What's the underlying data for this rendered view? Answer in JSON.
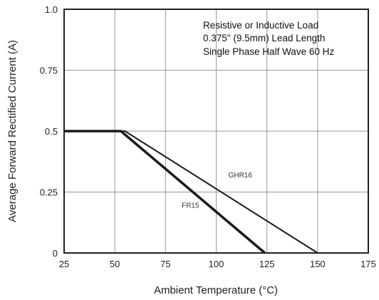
{
  "chart_data": {
    "type": "line",
    "title": "",
    "xlabel": "Ambient Temperature (°C)",
    "ylabel": "Average Forward Rectified Current (A)",
    "xlim": [
      25,
      175
    ],
    "ylim": [
      0,
      1.0
    ],
    "x_ticks": [
      25,
      50,
      75,
      100,
      125,
      150,
      175
    ],
    "y_ticks": [
      0,
      0.25,
      0.5,
      0.75,
      1.0
    ],
    "y_tick_labels": [
      "0",
      "0.25",
      "0.5",
      "0.75",
      "1.0"
    ],
    "grid": true,
    "annotations": [
      "Resistive or Inductive Load",
      "0.375\" (9.5mm) Lead Length",
      "Single Phase Half Wave 60 Hz"
    ],
    "series": [
      {
        "name": "GHR16",
        "points": [
          [
            25,
            0.5
          ],
          [
            55,
            0.5
          ],
          [
            150,
            0
          ]
        ],
        "label_at": [
          106,
          0.31
        ],
        "color": "#1a1a1a",
        "width": 2
      },
      {
        "name": "FR15",
        "points": [
          [
            25,
            0.5
          ],
          [
            53,
            0.5
          ],
          [
            124,
            0
          ]
        ],
        "label_at": [
          83,
          0.185
        ],
        "color": "#1a1a1a",
        "width": 3.5
      }
    ]
  }
}
